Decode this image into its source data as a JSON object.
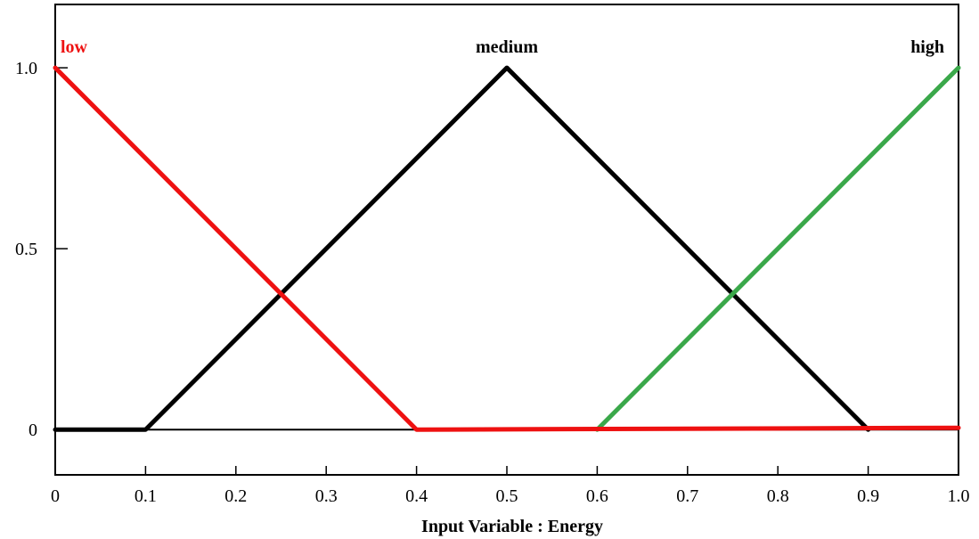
{
  "chart_data": {
    "type": "line",
    "xlabel": "Input Variable : Energy",
    "ylabel": "",
    "xlim": [
      0,
      1.0
    ],
    "ylim": [
      -0.125,
      1.175
    ],
    "x_ticks": [
      {
        "value": 0,
        "label": "0"
      },
      {
        "value": 0.1,
        "label": "0.1"
      },
      {
        "value": 0.2,
        "label": "0.2"
      },
      {
        "value": 0.3,
        "label": "0.3"
      },
      {
        "value": 0.4,
        "label": "0.4"
      },
      {
        "value": 0.5,
        "label": "0.5"
      },
      {
        "value": 0.6,
        "label": "0.6"
      },
      {
        "value": 0.7,
        "label": "0.7"
      },
      {
        "value": 0.8,
        "label": "0.8"
      },
      {
        "value": 0.9,
        "label": "0.9"
      },
      {
        "value": 1.0,
        "label": "1.0"
      }
    ],
    "y_ticks": [
      {
        "value": 0,
        "label": "0"
      },
      {
        "value": 0.5,
        "label": "0.5"
      },
      {
        "value": 1.0,
        "label": "1.0"
      }
    ],
    "grid": false,
    "series": [
      {
        "name": "medium",
        "color": "#000000",
        "label_color": "#000000",
        "points": [
          [
            0,
            0
          ],
          [
            0.1,
            0
          ],
          [
            0.5,
            1.0
          ],
          [
            0.9,
            0
          ]
        ]
      },
      {
        "name": "high",
        "color": "#3aa84a",
        "label_color": "#000000",
        "points": [
          [
            0.6,
            0
          ],
          [
            1.0,
            1.0
          ]
        ]
      },
      {
        "name": "low",
        "color": "#ee1111",
        "label_color": "#ee1111",
        "points": [
          [
            0,
            1.0
          ],
          [
            0.4,
            0
          ],
          [
            1.0,
            0.005
          ]
        ]
      }
    ]
  }
}
